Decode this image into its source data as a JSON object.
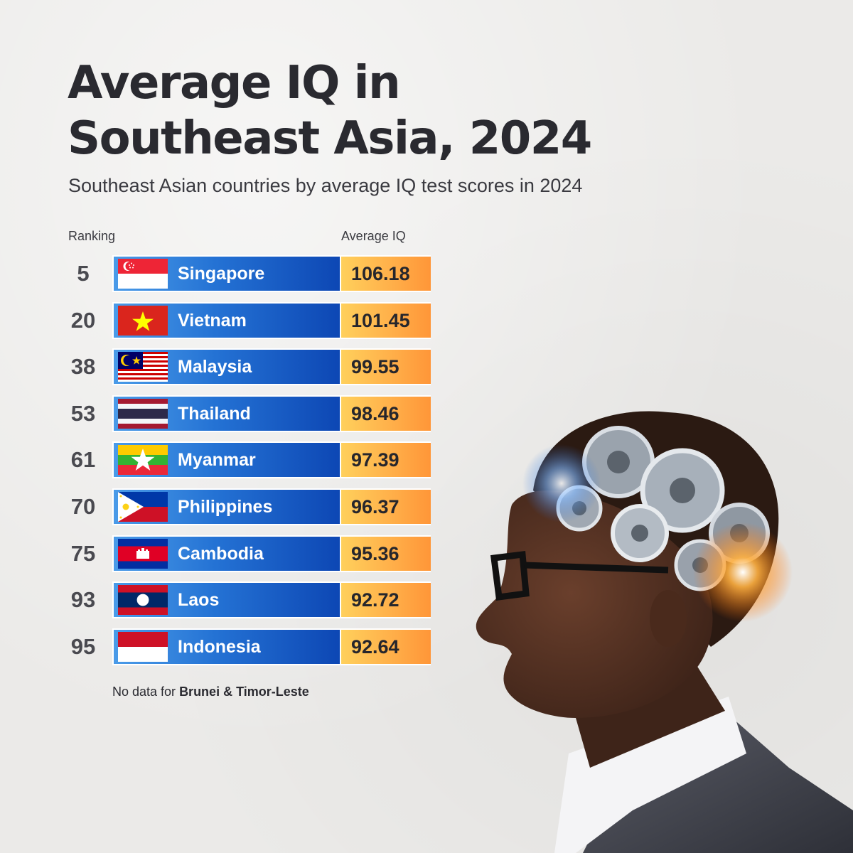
{
  "title_line1": "Average IQ in",
  "title_line2": "Southeast Asia, 2024",
  "subtitle": "Southeast Asian countries by average IQ test scores in 2024",
  "col_ranking": "Ranking",
  "col_avg_iq": "Average IQ",
  "footnote_prefix": "No data for ",
  "footnote_bold": "Brunei & Timor-Leste",
  "colors": {
    "name_bar_start": "#4a9be8",
    "name_bar_end": "#0d47b4",
    "value_bar_start": "#ffd05c",
    "value_bar_end": "#ff9638",
    "title": "#2a2a30"
  },
  "chart_data": {
    "type": "table",
    "title": "Average IQ in Southeast Asia, 2024",
    "subtitle": "Southeast Asian countries by average IQ test scores in 2024",
    "columns": [
      "Ranking",
      "Average IQ"
    ],
    "rows": [
      {
        "rank": "5",
        "country": "Singapore",
        "value": "106.18",
        "flag": "singapore-flag-icon"
      },
      {
        "rank": "20",
        "country": "Vietnam",
        "value": "101.45",
        "flag": "vietnam-flag-icon"
      },
      {
        "rank": "38",
        "country": "Malaysia",
        "value": "99.55",
        "flag": "malaysia-flag-icon"
      },
      {
        "rank": "53",
        "country": "Thailand",
        "value": "98.46",
        "flag": "thailand-flag-icon"
      },
      {
        "rank": "61",
        "country": "Myanmar",
        "value": "97.39",
        "flag": "myanmar-flag-icon"
      },
      {
        "rank": "70",
        "country": "Philippines",
        "value": "96.37",
        "flag": "philippines-flag-icon"
      },
      {
        "rank": "75",
        "country": "Cambodia",
        "value": "95.36",
        "flag": "cambodia-flag-icon"
      },
      {
        "rank": "93",
        "country": "Laos",
        "value": "92.72",
        "flag": "laos-flag-icon"
      },
      {
        "rank": "95",
        "country": "Indonesia",
        "value": "92.64",
        "flag": "indonesia-flag-icon"
      }
    ]
  }
}
